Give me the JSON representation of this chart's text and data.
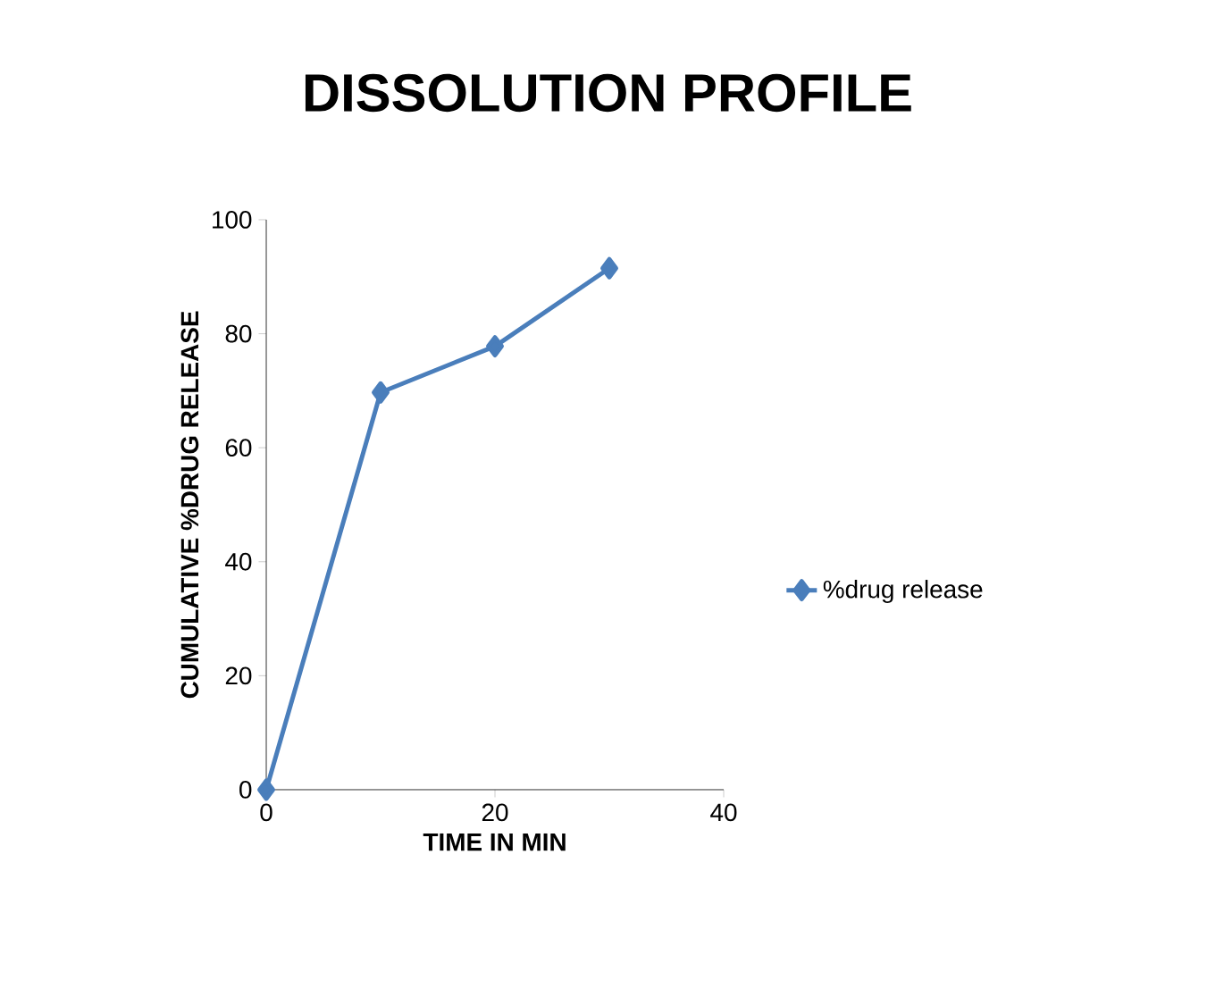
{
  "chart_data": {
    "type": "line",
    "title": "DISSOLUTION PROFILE",
    "xlabel": "TIME IN  MIN",
    "ylabel": "CUMULATIVE %DRUG RELEASE",
    "x": [
      0,
      10,
      20,
      30
    ],
    "series": [
      {
        "name": "%drug release",
        "color": "#4a7ebb",
        "values": [
          0,
          69.7,
          77.8,
          91.5
        ]
      }
    ],
    "xlim": [
      0,
      40
    ],
    "ylim": [
      0,
      100
    ],
    "xticks": [
      0,
      20,
      40
    ],
    "yticks": [
      0,
      20,
      40,
      60,
      80,
      100
    ],
    "legend": "right",
    "marker": "diamond",
    "line_style": "solid",
    "grid": false
  }
}
